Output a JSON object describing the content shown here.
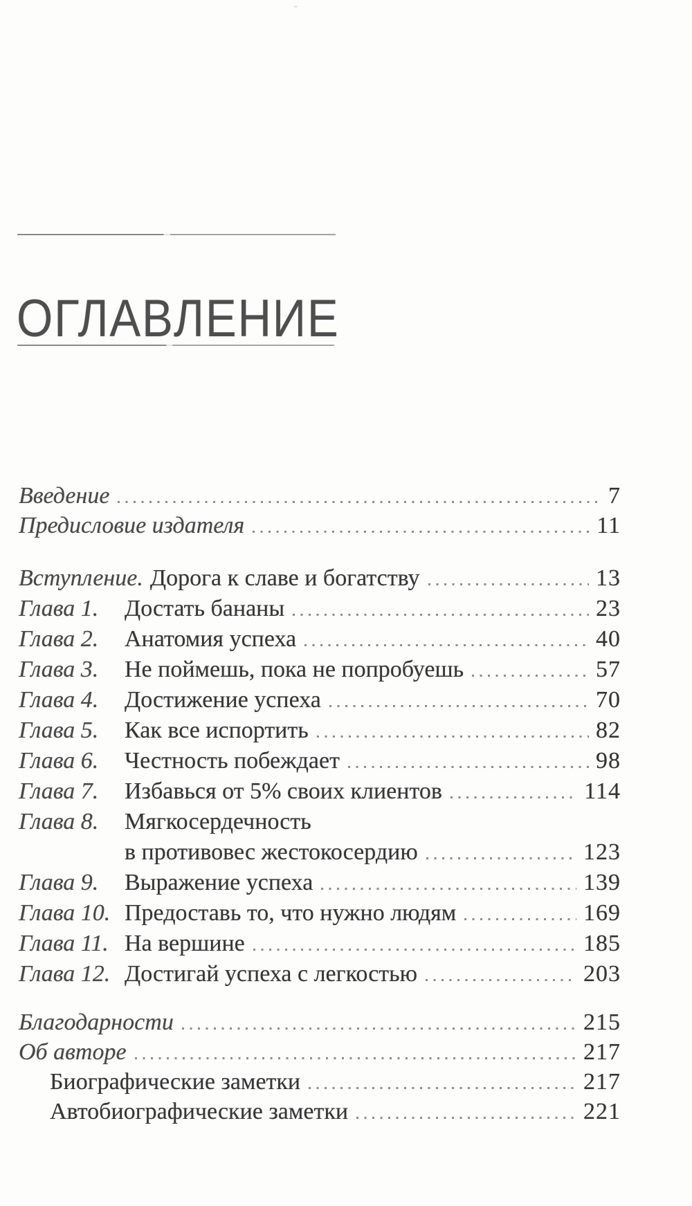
{
  "page_title": "ОГЛАВЛЕНИЕ",
  "toc": {
    "front": [
      {
        "label": "Введение",
        "page": "7"
      },
      {
        "label": "Предисловие издателя",
        "page": "11"
      }
    ],
    "chapters": [
      {
        "num": "Вступление.",
        "title": "Дорога к славе и богатству",
        "page": "13"
      },
      {
        "num": "Глава 1.",
        "title": "Достать бананы",
        "page": "23"
      },
      {
        "num": "Глава 2.",
        "title": "Анатомия успеха",
        "page": "40"
      },
      {
        "num": "Глава 3.",
        "title": "Не поймешь, пока не попробуешь",
        "page": "57"
      },
      {
        "num": "Глава 4.",
        "title": "Достижение успеха",
        "page": "70"
      },
      {
        "num": "Глава 5.",
        "title": "Как все испортить",
        "page": "82"
      },
      {
        "num": "Глава 6.",
        "title": "Честность побеждает",
        "page": "98"
      },
      {
        "num": "Глава 7.",
        "title": "Избавься от 5% своих клиентов",
        "page": "114"
      },
      {
        "num": "Глава 8.",
        "title": "Мягкосердечность",
        "title_line2": "в противовес жестокосердию",
        "page": "123"
      },
      {
        "num": "Глава 9.",
        "title": "Выражение успеха",
        "page": "139"
      },
      {
        "num": "Глава 10.",
        "title": "Предоставь то, что нужно людям",
        "page": "169"
      },
      {
        "num": "Глава 11.",
        "title": "На вершине",
        "page": "185"
      },
      {
        "num": "Глава 12.",
        "title": "Достигай успеха с легкостью",
        "page": "203"
      }
    ],
    "back": [
      {
        "label": "Благодарности",
        "page": "215"
      },
      {
        "label": "Об авторе",
        "page": "217"
      },
      {
        "label": "Биографические заметки",
        "page": "217"
      },
      {
        "label": "Автобиографические заметки",
        "page": "221"
      }
    ]
  }
}
